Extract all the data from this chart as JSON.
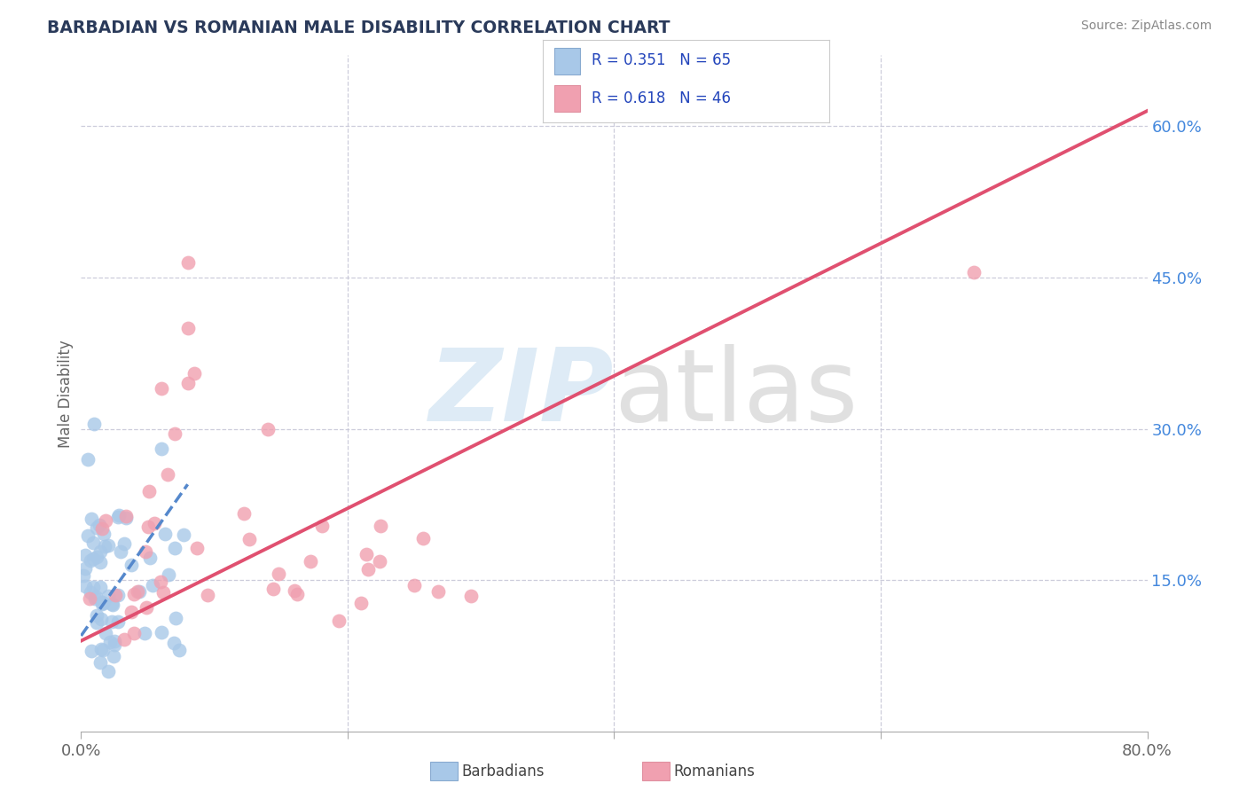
{
  "title": "BARBADIAN VS ROMANIAN MALE DISABILITY CORRELATION CHART",
  "source": "Source: ZipAtlas.com",
  "ylabel": "Male Disability",
  "xlim": [
    0.0,
    0.8
  ],
  "ylim": [
    0.0,
    0.67
  ],
  "yticks_right": [
    0.15,
    0.3,
    0.45,
    0.6
  ],
  "ytick_labels_right": [
    "15.0%",
    "30.0%",
    "45.0%",
    "60.0%"
  ],
  "grid_color": "#c8c8d8",
  "background_color": "#ffffff",
  "barbadian_color": "#a8c8e8",
  "romanian_color": "#f0a0b0",
  "barbadian_R": 0.351,
  "barbadian_N": 65,
  "romanian_R": 0.618,
  "romanian_N": 46,
  "barbadian_line_color": "#5588cc",
  "romanian_line_color": "#e05070",
  "legend_R_N_color": "#2244bb",
  "legend_text_color": "#333333",
  "barbadian_line_x0": 0.0,
  "barbadian_line_y0": 0.095,
  "barbadian_line_x1": 0.08,
  "barbadian_line_y1": 0.245,
  "romanian_line_x0": 0.0,
  "romanian_line_y0": 0.09,
  "romanian_line_x1": 0.8,
  "romanian_line_y1": 0.615
}
